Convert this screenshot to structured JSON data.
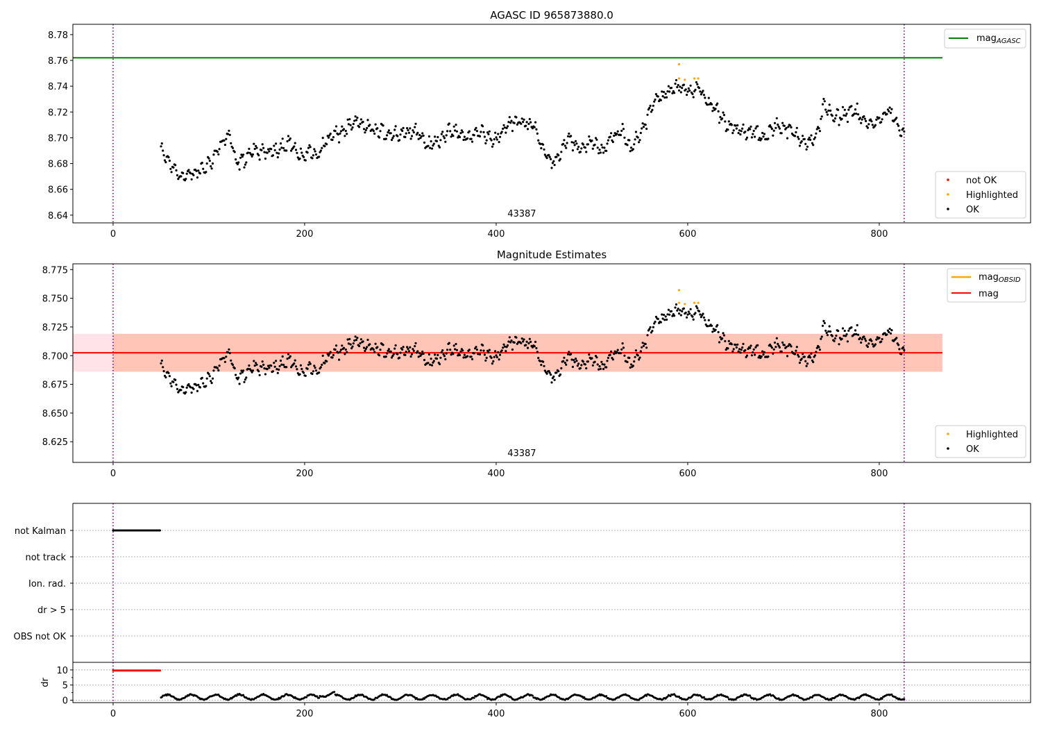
{
  "chart_data": [
    {
      "type": "scatter",
      "title": "AGASC ID 965873880.0",
      "xlim": [
        -42,
        958
      ],
      "ylim": [
        8.634,
        8.788
      ],
      "xticks": [
        0,
        200,
        400,
        600,
        800
      ],
      "yticks": [
        8.64,
        8.66,
        8.68,
        8.7,
        8.72,
        8.74,
        8.76,
        8.78
      ],
      "ytick_labels": [
        "8.64",
        "8.66",
        "8.68",
        "8.70",
        "8.72",
        "8.74",
        "8.76",
        "8.78"
      ],
      "vlines": [
        0,
        826
      ],
      "annotation": {
        "text": "43387",
        "x": 413
      },
      "lines": [
        {
          "name": "mag",
          "subscript": "AGASC",
          "y": 8.762,
          "x_end": 866,
          "color": "#008000"
        }
      ],
      "series": [
        {
          "name": "not OK",
          "color": "#ff0000",
          "points": []
        },
        {
          "name": "Highlighted",
          "color": "#ffa500",
          "points": [
            [
              591,
              8.757
            ],
            [
              591,
              8.746
            ],
            [
              597,
              8.745
            ],
            [
              607,
              8.746
            ],
            [
              611,
              8.746
            ]
          ]
        },
        {
          "name": "OK",
          "color": "#000000",
          "source": "estimated_curve",
          "x_range": [
            50,
            826
          ],
          "step": 1
        }
      ],
      "line_legend_position": "upper right",
      "scatter_legend_position": "lower right"
    },
    {
      "type": "scatter",
      "title": "Magnitude Estimates",
      "xlim": [
        -42,
        958
      ],
      "ylim": [
        8.607,
        8.78
      ],
      "xticks": [
        0,
        200,
        400,
        600,
        800
      ],
      "yticks": [
        8.625,
        8.65,
        8.675,
        8.7,
        8.725,
        8.75,
        8.775
      ],
      "ytick_labels": [
        "8.625",
        "8.650",
        "8.675",
        "8.700",
        "8.725",
        "8.750",
        "8.775"
      ],
      "vlines": [
        0,
        826
      ],
      "annotation": {
        "text": "43387",
        "x": 413
      },
      "lines": [
        {
          "name": "mag",
          "subscript": "OBSID",
          "y": 8.7025,
          "x_start": 0,
          "x_end": 826,
          "color": "#ffa500"
        },
        {
          "name": "mag",
          "subscript": "",
          "y": 8.7025,
          "x_start": -42,
          "x_end": 866,
          "color": "#ff0000"
        }
      ],
      "bands": [
        {
          "y0": 8.686,
          "y1": 8.719,
          "x_start": -42,
          "x_end": 866,
          "color": "#ffc0cb"
        },
        {
          "y0": 8.686,
          "y1": 8.719,
          "x_start": 0,
          "x_end": 866,
          "color": "#ffa07a"
        }
      ],
      "series": [
        {
          "name": "Highlighted",
          "color": "#ffa500",
          "points": [
            [
              591,
              8.757
            ],
            [
              591,
              8.746
            ],
            [
              597,
              8.745
            ],
            [
              607,
              8.746
            ],
            [
              611,
              8.746
            ]
          ]
        },
        {
          "name": "OK",
          "color": "#000000",
          "source": "estimated_curve",
          "x_range": [
            50,
            826
          ],
          "step": 1
        }
      ],
      "line_legend_position": "upper right",
      "scatter_legend_position": "lower right"
    },
    {
      "type": "scatter",
      "xlim": [
        -42,
        958
      ],
      "categories": [
        "not Kalman",
        "not track",
        "Ion. rad.",
        "dr > 5",
        "OBS not OK"
      ],
      "vlines": [
        0,
        826
      ],
      "flag_points": [
        {
          "category": "not Kalman",
          "x_range": [
            0,
            49
          ],
          "step": 1,
          "color": "#000000"
        }
      ]
    },
    {
      "type": "scatter",
      "ylabel": "dr",
      "xlim": [
        -42,
        958
      ],
      "ylim": [
        -0.8,
        12.5
      ],
      "yticks": [
        0,
        5,
        10
      ],
      "ytick_labels": [
        "0",
        "5",
        "10"
      ],
      "xticks": [
        0,
        200,
        400,
        600,
        800
      ],
      "vlines": [
        0,
        826
      ],
      "series": [
        {
          "name": "dr",
          "color": "#000000",
          "source": "estimated_curve",
          "x_range": [
            50,
            826
          ],
          "step": 1
        },
        {
          "name": "dr",
          "color": "#ff0000",
          "points_from": "x 0..49 at 9.8"
        }
      ]
    }
  ]
}
